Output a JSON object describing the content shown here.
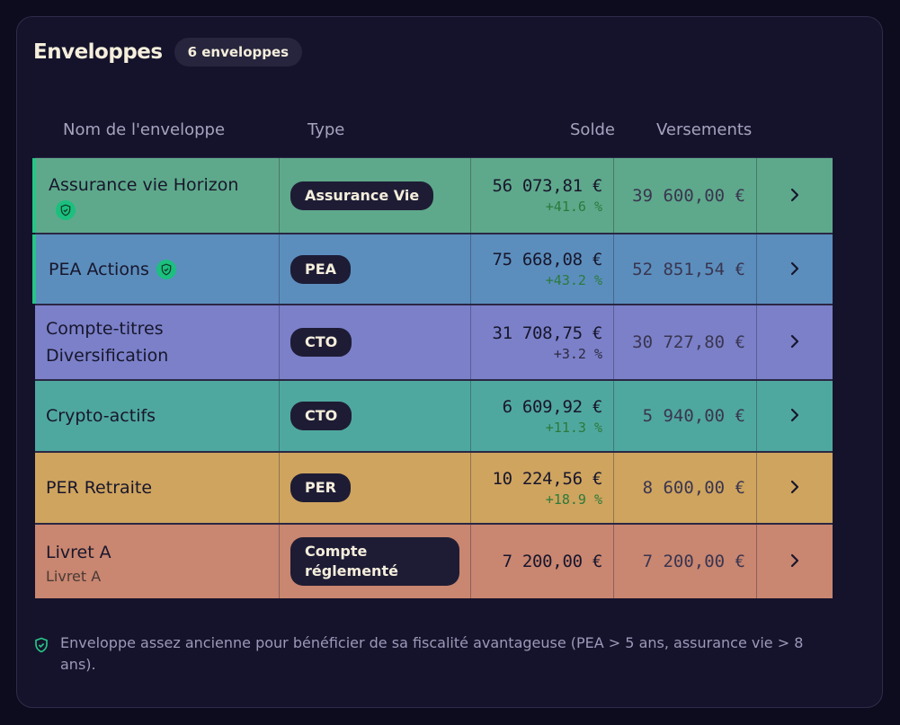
{
  "header": {
    "title": "Enveloppes",
    "count_badge": "6 enveloppes"
  },
  "columns": {
    "name": "Nom de l'enveloppe",
    "type": "Type",
    "solde": "Solde",
    "versements": "Versements"
  },
  "rows": [
    {
      "name": "Assurance vie Horizon",
      "type": "Assurance Vie",
      "solde": "56 073,81 €",
      "performance": "+41.6 %",
      "versements": "39 600,00 €",
      "aged_eligible": true,
      "color": "#5ea98b"
    },
    {
      "name": "PEA Actions",
      "type": "PEA",
      "solde": "75 668,08 €",
      "performance": "+43.2 %",
      "versements": "52 851,54 €",
      "aged_eligible": true,
      "color": "#5b8ebd"
    },
    {
      "name": "Compte-titres Diversification",
      "type": "CTO",
      "solde": "31 708,75 €",
      "performance": "+3.2 %",
      "versements": "30 727,80 €",
      "color": "#7b80c9"
    },
    {
      "name": "Crypto-actifs",
      "type": "CTO",
      "solde": "6 609,92 €",
      "performance": "+11.3 %",
      "versements": "5 940,00 €",
      "color": "#4fa89f"
    },
    {
      "name": "PER Retraite",
      "type": "PER",
      "solde": "10 224,56 €",
      "performance": "+18.9 %",
      "versements": "8 600,00 €",
      "color": "#cfa45e"
    },
    {
      "name": "Livret A",
      "subtitle": "Livret A",
      "type": "Compte réglementé",
      "solde": "7 200,00 €",
      "versements": "7 200,00 €",
      "color": "#c98670"
    }
  ],
  "footnote": "Enveloppe assez ancienne pour bénéficier de sa fiscalité avantageuse (PEA > 5 ans, assurance vie > 8 ans).",
  "colors": {
    "background": "#0d0b1e",
    "card": "#15132b",
    "accent_green": "#27c586"
  }
}
